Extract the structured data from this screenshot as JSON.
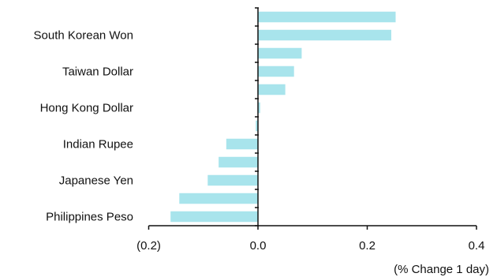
{
  "chart_data": {
    "type": "bar",
    "orientation": "horizontal",
    "title": "",
    "xlabel": "(% Change 1 day)",
    "ylabel": "",
    "xlim": [
      -0.2,
      0.4
    ],
    "x_ticks": [
      -0.2,
      0.0,
      0.2,
      0.4
    ],
    "x_tick_labels": [
      "(0.2)",
      "0.0",
      "0.2",
      "0.4"
    ],
    "grid": false,
    "legend": "none",
    "bar_color": "#a8e4ec",
    "axis_color": "#111111",
    "categories": [
      "",
      "South Korean Won",
      "",
      "Taiwan Dollar",
      "",
      "Hong Kong Dollar",
      "",
      "Indian Rupee",
      "",
      "Japanese Yen",
      "",
      "Philippines Peso"
    ],
    "values": [
      0.252,
      0.244,
      0.08,
      0.066,
      0.05,
      0.004,
      -0.004,
      -0.058,
      -0.072,
      -0.092,
      -0.144,
      -0.16
    ]
  }
}
